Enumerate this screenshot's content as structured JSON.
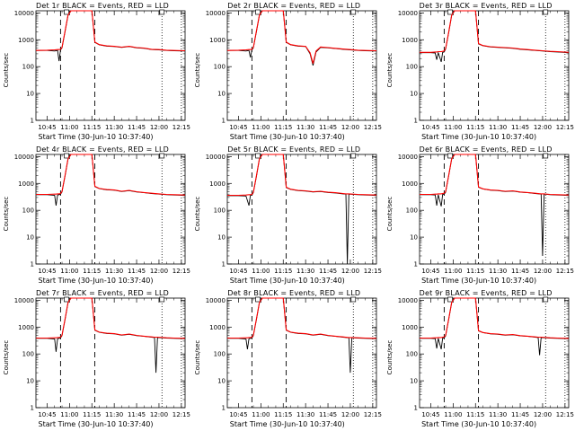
{
  "chart_data": {
    "type": "line",
    "panel_grid": [
      3,
      3
    ],
    "xlabel": "Start Time (30-Jun-10 10:37:40)",
    "ylabel": "Counts/sec",
    "y_scale": "log",
    "ylim": [
      1,
      12000
    ],
    "y_ticks": [
      1,
      10,
      100,
      1000,
      10000
    ],
    "x_tick_labels": [
      "10:45",
      "11:00",
      "11:15",
      "11:30",
      "11:45",
      "12:00",
      "12:15"
    ],
    "x_ticks_minutes": [
      0,
      15,
      30,
      45,
      60,
      75,
      90
    ],
    "xlim_minutes": [
      -7.5,
      92.5
    ],
    "series_colors": {
      "events": "#000000",
      "lld": "#ff0000"
    },
    "markers": {
      "dashed_minutes": [
        9,
        32
      ],
      "dotted_minutes": [
        77,
        90
      ]
    },
    "panels": [
      {
        "title": "Det 1r BLACK = Events, RED = LLD",
        "x_minutes": [
          -7.5,
          0,
          5,
          7,
          8,
          9,
          10,
          12,
          14,
          16,
          18,
          20,
          25,
          30,
          32,
          35,
          40,
          45,
          50,
          55,
          60,
          65,
          70,
          75,
          80,
          85,
          92.5
        ],
        "events": [
          400,
          400,
          380,
          400,
          160,
          420,
          500,
          2000,
          8000,
          12000,
          12000,
          12000,
          12000,
          12000,
          800,
          650,
          580,
          560,
          520,
          560,
          500,
          480,
          430,
          420,
          400,
          390,
          380
        ],
        "lld": [
          400,
          410,
          420,
          430,
          430,
          440,
          520,
          2100,
          8200,
          12000,
          12000,
          12000,
          12000,
          12000,
          820,
          660,
          590,
          570,
          530,
          570,
          510,
          490,
          440,
          430,
          410,
          400,
          390
        ]
      },
      {
        "title": "Det 2r BLACK = Events, RED = LLD",
        "x_minutes": [
          -7.5,
          0,
          5,
          7,
          8,
          9,
          10,
          12,
          14,
          16,
          18,
          20,
          25,
          30,
          32,
          35,
          40,
          45,
          48,
          50,
          52,
          55,
          60,
          65,
          70,
          75,
          80,
          85,
          92.5
        ],
        "events": [
          400,
          400,
          380,
          400,
          220,
          420,
          500,
          2000,
          8000,
          12000,
          12000,
          12000,
          12000,
          12000,
          800,
          650,
          580,
          560,
          300,
          110,
          350,
          520,
          500,
          470,
          440,
          420,
          400,
          390,
          380
        ],
        "lld": [
          400,
          410,
          420,
          430,
          430,
          440,
          520,
          2100,
          8200,
          12000,
          12000,
          12000,
          12000,
          12000,
          820,
          660,
          590,
          570,
          330,
          130,
          380,
          540,
          510,
          480,
          450,
          430,
          410,
          400,
          390
        ]
      },
      {
        "title": "Det 3r BLACK = Events, RED = LLD",
        "x_minutes": [
          -7.5,
          0,
          3,
          4,
          5,
          7,
          8,
          9,
          10,
          12,
          14,
          16,
          18,
          20,
          25,
          30,
          32,
          35,
          40,
          45,
          50,
          55,
          60,
          65,
          70,
          75,
          80,
          85,
          92.5
        ],
        "events": [
          330,
          330,
          320,
          180,
          330,
          150,
          340,
          350,
          450,
          1800,
          8000,
          12000,
          12000,
          12000,
          12000,
          12000,
          700,
          600,
          540,
          520,
          500,
          480,
          440,
          420,
          400,
          380,
          360,
          350,
          330
        ],
        "lld": [
          340,
          340,
          350,
          350,
          360,
          360,
          370,
          380,
          470,
          1900,
          8200,
          12000,
          12000,
          12000,
          12000,
          12000,
          720,
          610,
          550,
          530,
          510,
          490,
          450,
          430,
          410,
          390,
          370,
          360,
          340
        ]
      },
      {
        "title": "Det 4r BLACK = Events, RED = LLD",
        "x_minutes": [
          -7.5,
          0,
          5,
          6,
          7,
          8,
          9,
          10,
          12,
          14,
          16,
          18,
          20,
          25,
          30,
          32,
          35,
          40,
          45,
          50,
          55,
          60,
          65,
          70,
          75,
          80,
          85,
          92.5
        ],
        "events": [
          380,
          380,
          360,
          150,
          370,
          380,
          400,
          480,
          1900,
          8000,
          12000,
          12000,
          12000,
          12000,
          12000,
          760,
          640,
          580,
          560,
          500,
          540,
          480,
          450,
          420,
          400,
          380,
          370,
          360
        ],
        "lld": [
          390,
          390,
          400,
          400,
          410,
          410,
          420,
          500,
          2000,
          8200,
          12000,
          12000,
          12000,
          12000,
          12000,
          780,
          650,
          590,
          570,
          510,
          550,
          490,
          460,
          430,
          410,
          390,
          380,
          370
        ]
      },
      {
        "title": "Det 5r BLACK = Events, RED = LLD",
        "x_minutes": [
          -7.5,
          0,
          5,
          7,
          8,
          9,
          10,
          12,
          14,
          16,
          18,
          20,
          25,
          30,
          32,
          35,
          40,
          45,
          50,
          55,
          60,
          65,
          70,
          72,
          73,
          74,
          80,
          85,
          92.5
        ],
        "events": [
          350,
          350,
          340,
          150,
          360,
          370,
          450,
          1800,
          8000,
          12000,
          12000,
          12000,
          12000,
          12000,
          700,
          600,
          540,
          520,
          480,
          500,
          460,
          440,
          410,
          400,
          1,
          400,
          380,
          370,
          360
        ],
        "lld": [
          360,
          360,
          370,
          380,
          380,
          390,
          470,
          1900,
          8200,
          12000,
          12000,
          12000,
          12000,
          12000,
          720,
          610,
          550,
          530,
          490,
          510,
          470,
          450,
          420,
          410,
          410,
          410,
          390,
          380,
          370
        ]
      },
      {
        "title": "Det 6r BLACK = Events, RED = LLD",
        "x_minutes": [
          -7.5,
          0,
          3,
          4,
          5,
          7,
          8,
          9,
          10,
          12,
          14,
          16,
          18,
          20,
          25,
          30,
          32,
          35,
          40,
          45,
          50,
          55,
          60,
          65,
          70,
          74,
          75,
          76,
          80,
          85,
          92.5
        ],
        "events": [
          380,
          380,
          370,
          150,
          380,
          140,
          390,
          400,
          470,
          1900,
          8000,
          12000,
          12000,
          12000,
          12000,
          12000,
          720,
          620,
          560,
          540,
          500,
          520,
          470,
          450,
          420,
          400,
          2,
          400,
          380,
          370,
          360
        ],
        "lld": [
          390,
          390,
          400,
          400,
          410,
          410,
          420,
          430,
          490,
          2000,
          8200,
          12000,
          12000,
          12000,
          12000,
          12000,
          740,
          630,
          570,
          550,
          510,
          530,
          480,
          460,
          430,
          410,
          410,
          410,
          390,
          380,
          370
        ]
      },
      {
        "title": "Det 7r BLACK = Events, RED = LLD",
        "x_minutes": [
          -7.5,
          0,
          5,
          6,
          7,
          8,
          9,
          10,
          12,
          14,
          16,
          18,
          20,
          25,
          30,
          32,
          35,
          40,
          45,
          50,
          55,
          60,
          65,
          70,
          72,
          73,
          74,
          80,
          85,
          92.5
        ],
        "events": [
          380,
          380,
          360,
          120,
          370,
          380,
          400,
          480,
          1900,
          8000,
          12000,
          12000,
          12000,
          12000,
          12000,
          760,
          640,
          580,
          560,
          500,
          540,
          480,
          450,
          420,
          410,
          20,
          410,
          390,
          380,
          370
        ],
        "lld": [
          390,
          390,
          400,
          400,
          410,
          410,
          420,
          500,
          2000,
          8200,
          12000,
          12000,
          12000,
          12000,
          12000,
          780,
          650,
          590,
          570,
          510,
          550,
          490,
          460,
          430,
          420,
          420,
          420,
          400,
          390,
          380
        ]
      },
      {
        "title": "Det 8r BLACK = Events, RED = LLD",
        "x_minutes": [
          -7.5,
          0,
          5,
          6,
          7,
          8,
          9,
          10,
          12,
          14,
          16,
          18,
          20,
          25,
          30,
          32,
          35,
          40,
          45,
          50,
          55,
          60,
          65,
          70,
          74,
          75,
          76,
          80,
          85,
          92.5
        ],
        "events": [
          380,
          380,
          360,
          150,
          370,
          380,
          400,
          480,
          1900,
          8000,
          12000,
          12000,
          12000,
          12000,
          12000,
          760,
          640,
          580,
          560,
          500,
          540,
          480,
          450,
          420,
          400,
          20,
          400,
          390,
          380,
          370
        ],
        "lld": [
          390,
          390,
          400,
          400,
          410,
          410,
          420,
          500,
          2000,
          8200,
          12000,
          12000,
          12000,
          12000,
          12000,
          780,
          650,
          590,
          570,
          510,
          550,
          490,
          460,
          430,
          410,
          410,
          410,
          400,
          390,
          380
        ]
      },
      {
        "title": "Det 9r BLACK = Events, RED = LLD",
        "x_minutes": [
          -7.5,
          0,
          3,
          4,
          5,
          7,
          8,
          9,
          10,
          12,
          14,
          16,
          18,
          20,
          25,
          30,
          32,
          35,
          40,
          45,
          50,
          55,
          60,
          65,
          70,
          72,
          73,
          74,
          80,
          85,
          92.5
        ],
        "events": [
          380,
          380,
          370,
          160,
          380,
          150,
          390,
          400,
          470,
          1900,
          8000,
          12000,
          12000,
          12000,
          12000,
          12000,
          720,
          620,
          560,
          540,
          500,
          520,
          470,
          450,
          420,
          410,
          90,
          410,
          390,
          380,
          370
        ],
        "lld": [
          390,
          390,
          400,
          400,
          410,
          410,
          420,
          430,
          490,
          2000,
          8200,
          12000,
          12000,
          12000,
          12000,
          12000,
          740,
          630,
          570,
          550,
          510,
          530,
          480,
          460,
          430,
          420,
          420,
          420,
          400,
          390,
          380
        ]
      }
    ]
  }
}
